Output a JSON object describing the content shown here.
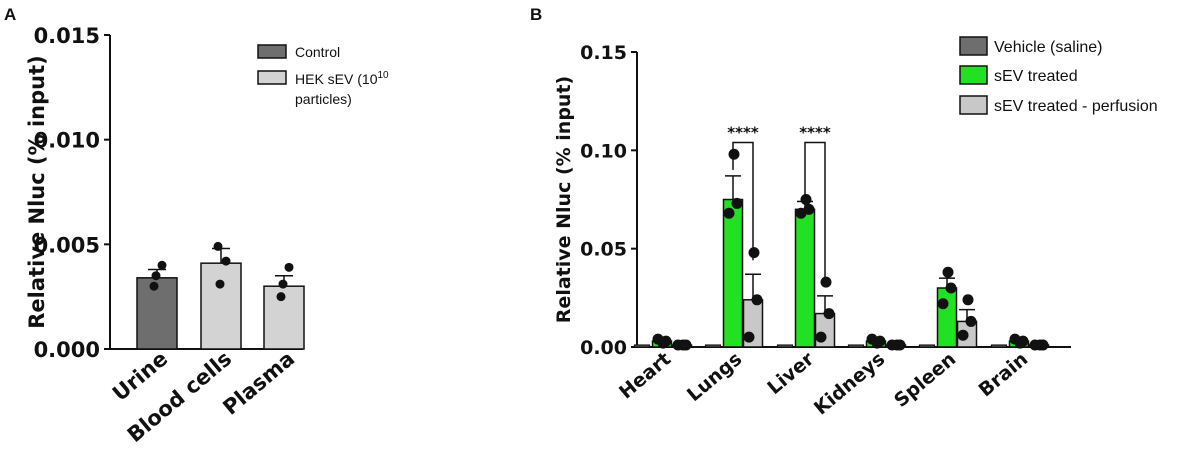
{
  "chart_data": [
    {
      "panel_label": "A",
      "type": "bar",
      "ylabel": "Relative Nluc (% input)",
      "ylim": [
        0,
        0.015
      ],
      "yticks": [
        "0.000",
        "0.005",
        "0.010",
        "0.015"
      ],
      "grid": false,
      "legend_placement": "top-right",
      "legend": [
        {
          "label": "Control",
          "color": "#6e6e6e"
        },
        {
          "label_line1": "HEK sEV (10",
          "label_sup": "10",
          "label_line2": "particles)",
          "color": "#d3d3d3"
        }
      ],
      "categories": [
        "Urine",
        "Blood cells",
        "Plasma"
      ],
      "values": [
        0.0034,
        0.0041,
        0.003
      ],
      "errors": [
        0.0004,
        0.0007,
        0.0005
      ],
      "colors": [
        "#6e6e6e",
        "#d3d3d3",
        "#d3d3d3"
      ],
      "points": [
        [
          0.0035,
          0.003,
          0.004
        ],
        [
          0.0031,
          0.0049,
          0.0042
        ],
        [
          0.0031,
          0.0025,
          0.0039
        ]
      ]
    },
    {
      "panel_label": "B",
      "type": "bar",
      "ylabel": "Relative Nluc (% input)",
      "ylim": [
        0,
        0.15
      ],
      "yticks": [
        "0.00",
        "0.05",
        "0.10",
        "0.15"
      ],
      "grid": false,
      "legend_placement": "top-right",
      "categories": [
        "Heart",
        "Lungs",
        "Liver",
        "Kidneys",
        "Spleen",
        "Brain"
      ],
      "series": [
        {
          "name": "Vehicle (saline)",
          "color": "#6e6e6e",
          "values": [
            0.001,
            0.001,
            0.001,
            0.001,
            0.001,
            0.001
          ],
          "errors": [
            0,
            0,
            0,
            0,
            0,
            0
          ],
          "points": [
            [],
            [],
            [],
            [],
            [],
            []
          ]
        },
        {
          "name": "sEV treated",
          "color": "#22e022",
          "values": [
            0.003,
            0.075,
            0.07,
            0.003,
            0.03,
            0.003
          ],
          "errors": [
            0.001,
            0.012,
            0.004,
            0.001,
            0.005,
            0.001
          ],
          "points": [
            [
              0.002,
              0.004,
              0.003
            ],
            [
              0.098,
              0.068,
              0.073
            ],
            [
              0.075,
              0.068,
              0.07
            ],
            [
              0.002,
              0.004,
              0.003
            ],
            [
              0.038,
              0.022,
              0.03
            ],
            [
              0.002,
              0.004,
              0.003
            ]
          ]
        },
        {
          "name": "sEV treated - perfusion",
          "color": "#c8c8c8",
          "values": [
            0.001,
            0.024,
            0.017,
            0.001,
            0.013,
            0.001
          ],
          "errors": [
            0,
            0.013,
            0.009,
            0,
            0.006,
            0
          ],
          "points": [
            [
              0.001,
              0.001,
              0.001
            ],
            [
              0.048,
              0.005,
              0.024
            ],
            [
              0.033,
              0.005,
              0.017
            ],
            [
              0.001,
              0.001,
              0.001
            ],
            [
              0.024,
              0.006,
              0.013
            ],
            [
              0.001,
              0.001,
              0.001
            ]
          ]
        }
      ],
      "annotations": [
        {
          "text": "****",
          "category": "Lungs",
          "y": 0.104
        },
        {
          "text": "****",
          "category": "Liver",
          "y": 0.104
        }
      ]
    }
  ]
}
